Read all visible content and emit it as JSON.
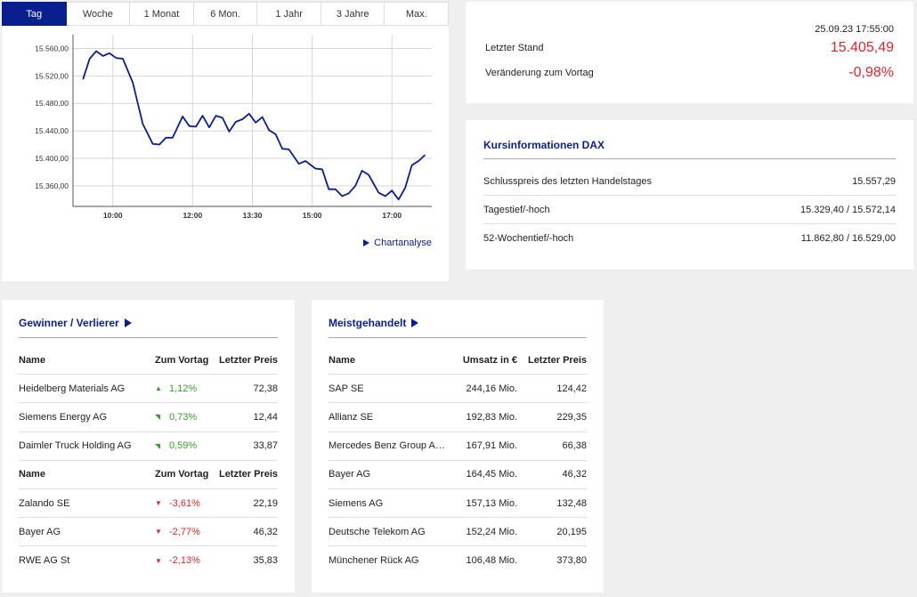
{
  "chart": {
    "tabs": [
      "Tag",
      "Woche",
      "1 Monat",
      "6 Mon.",
      "1 Jahr",
      "3 Jahre",
      "Max."
    ],
    "active_tab": 0,
    "link_label": "Chartanalyse",
    "line_color": "#0a1f8f"
  },
  "chart_data": {
    "type": "line",
    "title": "",
    "xlabel": "",
    "ylabel": "",
    "x_ticks": [
      "10:00",
      "12:00",
      "13:30",
      "15:00",
      "17:00"
    ],
    "y_ticks": [
      "15.360,00",
      "15.400,00",
      "15.440,00",
      "15.480,00",
      "15.520,00",
      "15.560,00"
    ],
    "ylim": [
      15330,
      15580
    ],
    "xlim": [
      "09:00",
      "18:00"
    ],
    "grid": true,
    "series": [
      {
        "x": [
          "09:15",
          "09:25",
          "09:35",
          "09:45",
          "09:55",
          "10:05",
          "10:15",
          "10:30",
          "10:45",
          "11:00",
          "11:10",
          "11:20",
          "11:30",
          "11:45",
          "11:55",
          "12:05",
          "12:15",
          "12:25",
          "12:35",
          "12:45",
          "12:55",
          "13:05",
          "13:15",
          "13:25",
          "13:35",
          "13:45",
          "13:55",
          "14:05",
          "14:15",
          "14:25",
          "14:40",
          "14:50",
          "15:05",
          "15:15",
          "15:25",
          "15:35",
          "15:45",
          "15:55",
          "16:05",
          "16:15",
          "16:25",
          "16:40",
          "16:50",
          "17:00",
          "17:10",
          "17:20",
          "17:30",
          "17:40",
          "17:50"
        ],
        "y": [
          15515,
          15545,
          15556,
          15549,
          15553,
          15546,
          15545,
          15510,
          15450,
          15421,
          15420,
          15430,
          15430,
          15461,
          15447,
          15446,
          15462,
          15445,
          15462,
          15459,
          15439,
          15453,
          15457,
          15465,
          15452,
          15460,
          15441,
          15435,
          15414,
          15413,
          15392,
          15396,
          15385,
          15384,
          15355,
          15355,
          15345,
          15349,
          15360,
          15382,
          15376,
          15350,
          15345,
          15353,
          15340,
          15357,
          15390,
          15396,
          15405
        ]
      }
    ]
  },
  "quote": {
    "timestamp": "25.09.23 17:55:00",
    "last_label": "Letzter Stand",
    "last_value": "15.405,49",
    "change_label": "Veränderung zum Vortag",
    "change_value": "-0,98%"
  },
  "info": {
    "title": "Kursinformationen DAX",
    "rows": [
      {
        "label": "Schlusspreis des letzten Handelstages",
        "value": "15.557,29"
      },
      {
        "label": "Tagestief/-hoch",
        "value": "15.329,40 / 15.572,14"
      },
      {
        "label": "52-Wochentief/-hoch",
        "value": "11.862,80 / 16.529,00"
      }
    ]
  },
  "gainers_losers": {
    "title": "Gewinner / Verlierer",
    "headers": {
      "name": "Name",
      "change": "Zum Vortag",
      "price": "Letzter Preis"
    },
    "gainers": [
      {
        "name": "Heidelberg Materials AG",
        "change": "1,12%",
        "price": "72,38",
        "arrow": "▲"
      },
      {
        "name": "Siemens Energy AG",
        "change": "0,73%",
        "price": "12,44",
        "arrow": "◥"
      },
      {
        "name": "Daimler Truck Holding AG",
        "change": "0,59%",
        "price": "33,87",
        "arrow": "◥"
      }
    ],
    "losers": [
      {
        "name": "Zalando SE",
        "change": "-3,61%",
        "price": "22,19",
        "arrow": "▼"
      },
      {
        "name": "Bayer AG",
        "change": "-2,77%",
        "price": "46,32",
        "arrow": "▼"
      },
      {
        "name": "RWE AG St",
        "change": "-2,13%",
        "price": "35,83",
        "arrow": "▼"
      }
    ],
    "up_color": "#3a9a2d",
    "down_color": "#e0262b"
  },
  "most_traded": {
    "title": "Meistgehandelt",
    "headers": {
      "name": "Name",
      "volume": "Umsatz in €",
      "price": "Letzter Preis"
    },
    "rows": [
      {
        "name": "SAP SE",
        "volume": "244,16 Mio.",
        "price": "124,42"
      },
      {
        "name": "Allianz SE",
        "volume": "192,83 Mio.",
        "price": "229,35"
      },
      {
        "name": "Mercedes Benz Group AG ...",
        "volume": "167,91 Mio.",
        "price": "66,38"
      },
      {
        "name": "Bayer AG",
        "volume": "164,45 Mio.",
        "price": "46,32"
      },
      {
        "name": "Siemens AG",
        "volume": "157,13 Mio.",
        "price": "132,48"
      },
      {
        "name": "Deutsche Telekom AG",
        "volume": "152,24 Mio.",
        "price": "20,195"
      },
      {
        "name": "Münchener Rück AG",
        "volume": "106,48 Mio.",
        "price": "373,80"
      }
    ]
  }
}
